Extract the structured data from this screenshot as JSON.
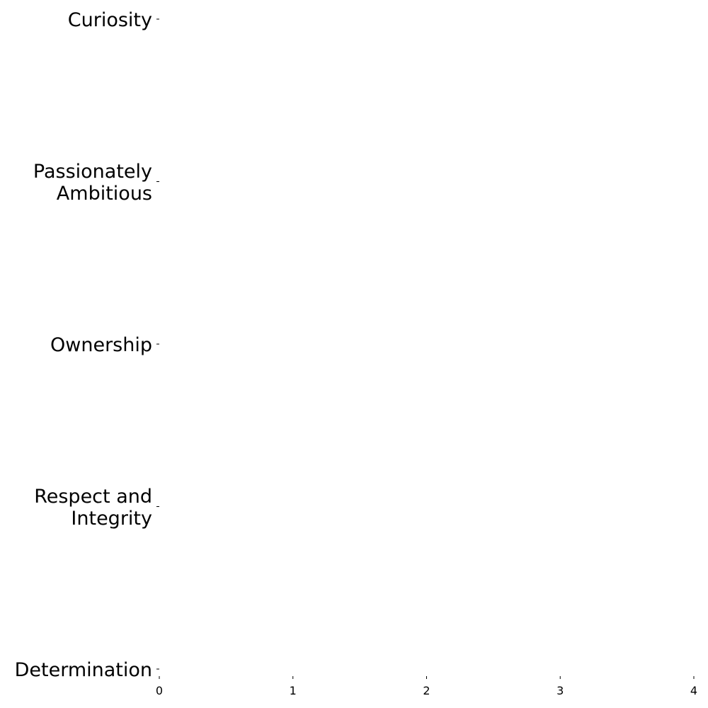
{
  "chart_data": {
    "type": "bar",
    "orientation": "horizontal",
    "title": "",
    "xlabel": "",
    "ylabel": "",
    "categories": [
      [
        "Curiosity"
      ],
      [
        "Passionately",
        "Ambitious"
      ],
      [
        "Ownership"
      ],
      [
        "Respect and",
        "Integrity"
      ],
      [
        "Determination"
      ]
    ],
    "values": [
      0,
      0,
      0,
      0,
      0
    ],
    "xlim": [
      0,
      4
    ],
    "x_ticks": [
      "0",
      "1",
      "2",
      "3",
      "4"
    ],
    "grid": false,
    "legend": "none",
    "colors": {
      "text": "#000000",
      "background": "#ffffff"
    }
  }
}
